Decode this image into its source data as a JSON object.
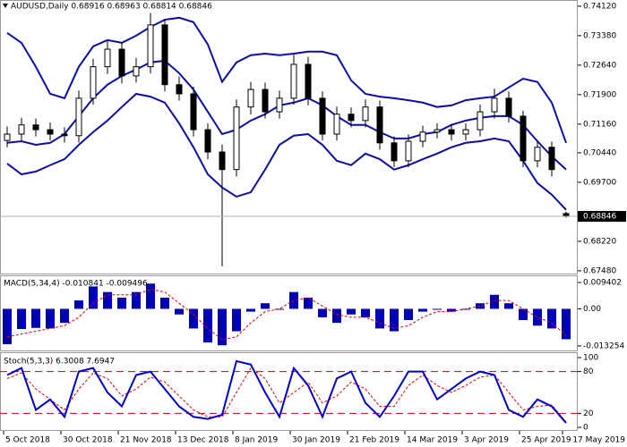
{
  "chart_data": [
    {
      "type": "candlestick",
      "title": "AUDUSD,Daily  0.68916 0.68963 0.68814 0.68846",
      "categories": [
        "5 Oct 2018",
        null,
        null,
        null,
        "30 Oct 2018",
        null,
        null,
        null,
        "21 Nov 2018",
        null,
        null,
        null,
        "13 Dec 2018",
        null,
        null,
        null,
        "8 Jan 2019",
        null,
        null,
        null,
        "30 Jan 2019",
        null,
        null,
        null,
        "21 Feb 2019",
        null,
        null,
        null,
        "14 Mar 2019",
        null,
        null,
        null,
        "3 Apr 2019",
        null,
        null,
        null,
        "25 Apr 2019",
        null,
        null,
        "17 May 2019"
      ],
      "open": [
        0.7075,
        0.7091,
        0.7114,
        0.7102,
        0.7091,
        0.7087,
        0.7181,
        0.726,
        0.7304,
        0.7237,
        0.726,
        0.7365,
        0.7215,
        0.7192,
        0.7102,
        0.7046,
        0.7002,
        0.7159,
        0.7203,
        0.7147,
        0.7181,
        0.7266,
        0.7181,
        0.7091,
        0.7141,
        0.7125,
        0.7159,
        0.7069,
        0.7024,
        0.7073,
        0.7096,
        0.7102,
        0.7091,
        0.7102,
        0.7147,
        0.7181,
        0.7136,
        0.7024,
        0.7058,
        0.68916
      ],
      "high": [
        0.711,
        0.7132,
        0.713,
        0.712,
        0.7108,
        0.72,
        0.728,
        0.7325,
        0.732,
        0.7282,
        0.7395,
        0.738,
        0.7235,
        0.721,
        0.7118,
        0.7065,
        0.7178,
        0.7222,
        0.722,
        0.72,
        0.729,
        0.7285,
        0.7198,
        0.716,
        0.7158,
        0.7178,
        0.7175,
        0.7085,
        0.709,
        0.7112,
        0.7118,
        0.7116,
        0.7118,
        0.7165,
        0.7205,
        0.7198,
        0.715,
        0.7075,
        0.7072,
        0.68963
      ],
      "low": [
        0.7058,
        0.7075,
        0.7085,
        0.7075,
        0.707,
        0.707,
        0.7165,
        0.7242,
        0.7218,
        0.722,
        0.7243,
        0.7198,
        0.7175,
        0.7085,
        0.7028,
        0.6759,
        0.6985,
        0.714,
        0.713,
        0.713,
        0.7165,
        0.7163,
        0.7075,
        0.7075,
        0.7108,
        0.7108,
        0.7052,
        0.7008,
        0.7008,
        0.7058,
        0.708,
        0.7075,
        0.7075,
        0.7085,
        0.713,
        0.712,
        0.7008,
        0.7008,
        0.6985,
        0.68814
      ],
      "close": [
        0.7091,
        0.7114,
        0.7102,
        0.7091,
        0.7087,
        0.7181,
        0.726,
        0.7304,
        0.7237,
        0.726,
        0.7365,
        0.7215,
        0.7192,
        0.7102,
        0.7046,
        0.7002,
        0.7159,
        0.7203,
        0.7147,
        0.7181,
        0.7266,
        0.7181,
        0.7091,
        0.7141,
        0.7125,
        0.7159,
        0.7069,
        0.7024,
        0.7073,
        0.7096,
        0.7102,
        0.7091,
        0.7102,
        0.7147,
        0.7181,
        0.7136,
        0.7024,
        0.7058,
        0.7002,
        0.68846
      ],
      "bands": {
        "color": "#0c0ca8",
        "upper": [
          0.7345,
          0.732,
          0.726,
          0.7192,
          0.7181,
          0.726,
          0.7311,
          0.7327,
          0.732,
          0.7338,
          0.736,
          0.7378,
          0.7383,
          0.7372,
          0.7316,
          0.7222,
          0.7271,
          0.7289,
          0.7293,
          0.7289,
          0.7293,
          0.7298,
          0.7298,
          0.7289,
          0.7226,
          0.7192,
          0.7185,
          0.7181,
          0.7176,
          0.717,
          0.7159,
          0.7163,
          0.7176,
          0.7181,
          0.7185,
          0.7208,
          0.723,
          0.7222,
          0.717,
          0.7069
        ],
        "middle": [
          0.7069,
          0.7073,
          0.7064,
          0.7069,
          0.7091,
          0.7136,
          0.7181,
          0.7215,
          0.7237,
          0.7253,
          0.7271,
          0.7275,
          0.7244,
          0.7203,
          0.7147,
          0.7091,
          0.7102,
          0.7125,
          0.7141,
          0.7163,
          0.717,
          0.7181,
          0.7163,
          0.7136,
          0.7114,
          0.7114,
          0.7096,
          0.708,
          0.708,
          0.7091,
          0.7096,
          0.7114,
          0.7125,
          0.7132,
          0.7136,
          0.7136,
          0.7114,
          0.7073,
          0.7035,
          0.7002
        ],
        "lower": [
          0.7017,
          0.699,
          0.6997,
          0.7013,
          0.7028,
          0.7064,
          0.7096,
          0.7125,
          0.7159,
          0.7192,
          0.7185,
          0.717,
          0.7118,
          0.7058,
          0.699,
          0.6957,
          0.6934,
          0.6945,
          0.7002,
          0.7064,
          0.7087,
          0.7091,
          0.7064,
          0.7024,
          0.7013,
          0.7042,
          0.7028,
          0.7002,
          0.7013,
          0.7028,
          0.7042,
          0.7058,
          0.7069,
          0.7073,
          0.708,
          0.7073,
          0.7024,
          0.6968,
          0.6939,
          0.6901
        ]
      },
      "up_color": "#ffffff",
      "down_color": "#000000",
      "last_price": 0.68846,
      "ylim": [
        0.6741,
        0.7423
      ],
      "yticks": [
        {
          "value": 0.7412,
          "label": "0.74120"
        },
        {
          "value": 0.7338,
          "label": "0.73380"
        },
        {
          "value": 0.7264,
          "label": "0.72640"
        },
        {
          "value": 0.719,
          "label": "0.71900"
        },
        {
          "value": 0.7116,
          "label": "0.71160"
        },
        {
          "value": 0.7044,
          "label": "0.70440"
        },
        {
          "value": 0.697,
          "label": "0.69700"
        },
        {
          "value": 0.6822,
          "label": "0.68220"
        },
        {
          "value": 0.6748,
          "label": "0.67480"
        }
      ]
    },
    {
      "type": "macd",
      "title": "MACD(5,34,4) -0.010841 -0.009496",
      "values": [
        -0.0126,
        -0.0072,
        -0.0068,
        -0.007,
        -0.005,
        0.003,
        0.008,
        0.006,
        0.004,
        0.006,
        0.009,
        0.004,
        -0.002,
        -0.007,
        -0.012,
        -0.013,
        -0.008,
        -0.001,
        0.002,
        0.0,
        0.006,
        0.004,
        -0.003,
        -0.005,
        -0.002,
        -0.003,
        -0.007,
        -0.008,
        -0.004,
        -0.001,
        0.0,
        -0.001,
        0.0,
        0.002,
        0.005,
        0.002,
        -0.004,
        -0.006,
        -0.007,
        -0.010841
      ],
      "signal": [
        -0.01,
        -0.009,
        -0.008,
        -0.007,
        -0.006,
        -0.003,
        0.002,
        0.005,
        0.005,
        0.005,
        0.007,
        0.006,
        0.002,
        -0.002,
        -0.007,
        -0.011,
        -0.01,
        -0.005,
        -0.001,
        0.0,
        0.003,
        0.004,
        0.001,
        -0.002,
        -0.003,
        -0.003,
        -0.005,
        -0.007,
        -0.006,
        -0.003,
        -0.001,
        -0.001,
        0.0,
        0.001,
        0.003,
        0.003,
        0.0,
        -0.003,
        -0.005,
        -0.009496
      ],
      "color": "#0000b4",
      "signal_color": "#e00000",
      "ylim": [
        -0.01485,
        0.011
      ],
      "yticks": [
        0.009402,
        {
          "value": 0,
          "label": "0.00"
        },
        -0.013254
      ]
    },
    {
      "type": "stochastic",
      "title": "Stoch(5,3,3) 6.3008 7.6947",
      "main": [
        75,
        85,
        25,
        40,
        15,
        80,
        85,
        50,
        30,
        75,
        80,
        55,
        30,
        15,
        12,
        18,
        95,
        90,
        50,
        15,
        85,
        60,
        15,
        70,
        80,
        35,
        15,
        45,
        80,
        80,
        40,
        55,
        70,
        80,
        75,
        25,
        15,
        40,
        30,
        6.3008
      ],
      "signal": [
        70,
        78,
        55,
        40,
        25,
        55,
        78,
        70,
        45,
        55,
        72,
        65,
        45,
        25,
        15,
        15,
        50,
        85,
        70,
        35,
        50,
        65,
        35,
        45,
        65,
        55,
        30,
        30,
        60,
        75,
        60,
        50,
        60,
        72,
        75,
        50,
        25,
        30,
        32,
        7.6947
      ],
      "color": "#0000c8",
      "signal_color": "#e00000",
      "level_color": "#d00000",
      "levels": [
        80,
        20
      ],
      "ylim": [
        0,
        100
      ],
      "yticks": [
        100,
        80,
        20,
        0
      ]
    }
  ]
}
